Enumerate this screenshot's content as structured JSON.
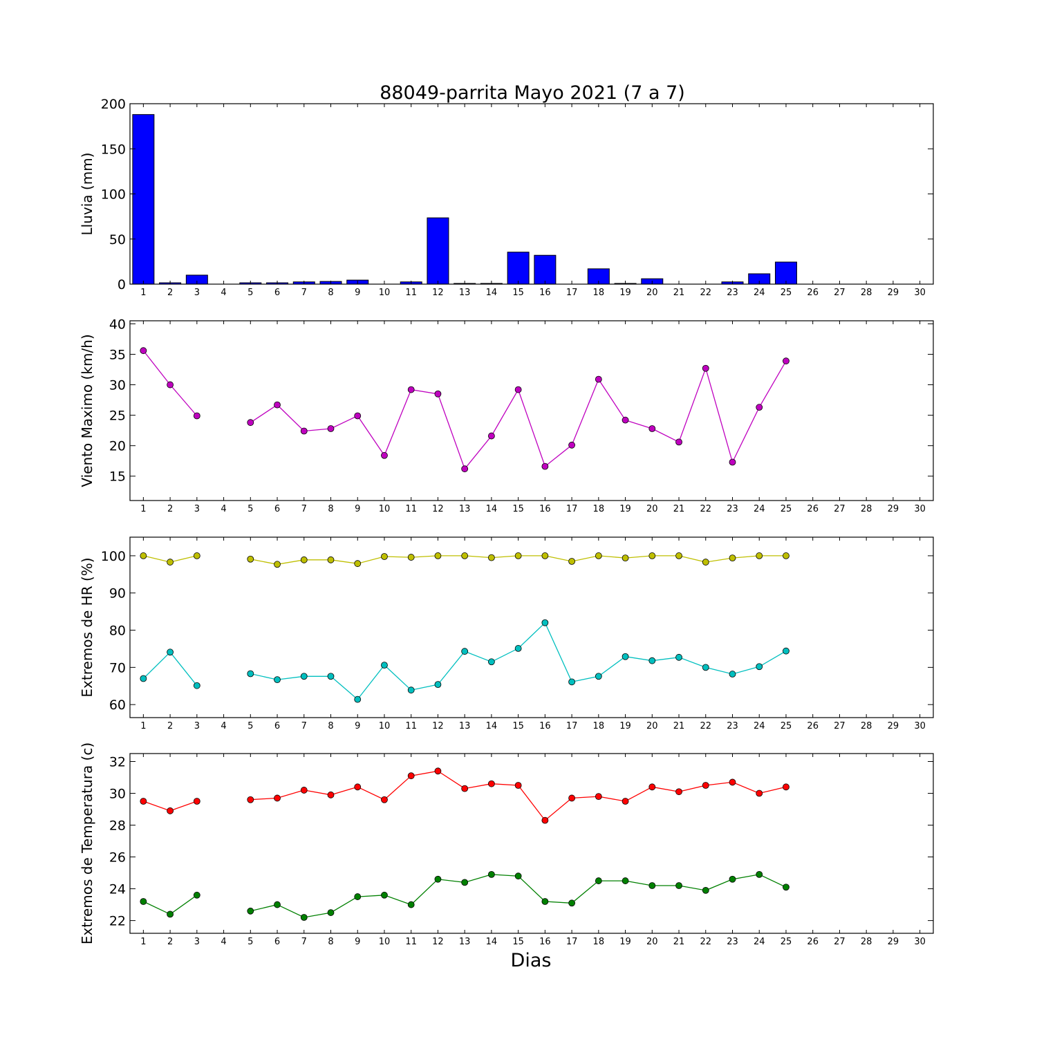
{
  "figure": {
    "title": "88049-parrita Mayo 2021  (7 a 7)",
    "xlabel": "Dias"
  },
  "chart_data": [
    {
      "type": "bar",
      "ylabel": "Lluvia (mm)",
      "ylim": [
        0,
        200
      ],
      "yticks": [
        0,
        50,
        100,
        150,
        200
      ],
      "xticks": [
        1,
        2,
        3,
        4,
        5,
        6,
        7,
        8,
        9,
        10,
        11,
        12,
        13,
        14,
        15,
        16,
        17,
        18,
        19,
        20,
        21,
        22,
        23,
        24,
        25,
        26,
        27,
        28,
        29,
        30
      ],
      "x": [
        1,
        2,
        3,
        4,
        5,
        6,
        7,
        8,
        9,
        10,
        11,
        12,
        13,
        14,
        15,
        16,
        17,
        18,
        19,
        20,
        21,
        22,
        23,
        24,
        25
      ],
      "series": [
        {
          "color": "#0000ff",
          "values": [
            188,
            1.5,
            10,
            null,
            1.5,
            1.5,
            2.5,
            3,
            4.5,
            null,
            2.5,
            73.5,
            0.8,
            0.8,
            35.5,
            32,
            null,
            17,
            0.8,
            6,
            null,
            null,
            2.5,
            11.5,
            24.5
          ]
        }
      ]
    },
    {
      "type": "line",
      "ylabel": "Viento Maximo (km/h)",
      "ylim": [
        11,
        40.5
      ],
      "yticks": [
        15,
        20,
        25,
        30,
        35,
        40
      ],
      "xticks": [
        1,
        2,
        3,
        4,
        5,
        6,
        7,
        8,
        9,
        10,
        11,
        12,
        13,
        14,
        15,
        16,
        17,
        18,
        19,
        20,
        21,
        22,
        23,
        24,
        25,
        26,
        27,
        28,
        29,
        30
      ],
      "x": [
        1,
        2,
        3,
        4,
        5,
        6,
        7,
        8,
        9,
        10,
        11,
        12,
        13,
        14,
        15,
        16,
        17,
        18,
        19,
        20,
        21,
        22,
        23,
        24,
        25
      ],
      "series": [
        {
          "color": "#bf00bf",
          "values": [
            35.6,
            30,
            24.9,
            null,
            23.8,
            26.7,
            22.4,
            22.8,
            24.9,
            18.4,
            29.2,
            28.5,
            16.2,
            21.6,
            29.2,
            16.6,
            20.1,
            30.9,
            24.2,
            22.8,
            20.6,
            32.7,
            17.3,
            26.3,
            33.9
          ]
        }
      ]
    },
    {
      "type": "line",
      "ylabel": "Extremos de HR (%)",
      "ylim": [
        56.5,
        105
      ],
      "yticks": [
        60,
        70,
        80,
        90,
        100
      ],
      "xticks": [
        1,
        2,
        3,
        4,
        5,
        6,
        7,
        8,
        9,
        10,
        11,
        12,
        13,
        14,
        15,
        16,
        17,
        18,
        19,
        20,
        21,
        22,
        23,
        24,
        25,
        26,
        27,
        28,
        29,
        30
      ],
      "x": [
        1,
        2,
        3,
        4,
        5,
        6,
        7,
        8,
        9,
        10,
        11,
        12,
        13,
        14,
        15,
        16,
        17,
        18,
        19,
        20,
        21,
        22,
        23,
        24,
        25
      ],
      "series": [
        {
          "color": "#bfbf00",
          "values": [
            100,
            98.3,
            100,
            null,
            99.1,
            97.7,
            98.9,
            98.9,
            97.9,
            99.8,
            99.6,
            100,
            100,
            99.5,
            100,
            100,
            98.5,
            100,
            99.4,
            100,
            100,
            98.3,
            99.4,
            100,
            100
          ]
        },
        {
          "color": "#00bfbf",
          "values": [
            67,
            74.1,
            65.1,
            null,
            68.3,
            66.7,
            67.6,
            67.6,
            61.4,
            70.6,
            63.9,
            65.4,
            74.3,
            71.5,
            75.1,
            82,
            66.1,
            67.6,
            72.9,
            71.8,
            72.7,
            70,
            68.2,
            70.2,
            74.4
          ]
        }
      ]
    },
    {
      "type": "line",
      "ylabel": "Extremos de Temperatura (c)",
      "ylim": [
        21.2,
        32.5
      ],
      "yticks": [
        22,
        24,
        26,
        28,
        30,
        32
      ],
      "xticks": [
        1,
        2,
        3,
        4,
        5,
        6,
        7,
        8,
        9,
        10,
        11,
        12,
        13,
        14,
        15,
        16,
        17,
        18,
        19,
        20,
        21,
        22,
        23,
        24,
        25,
        26,
        27,
        28,
        29,
        30
      ],
      "x": [
        1,
        2,
        3,
        4,
        5,
        6,
        7,
        8,
        9,
        10,
        11,
        12,
        13,
        14,
        15,
        16,
        17,
        18,
        19,
        20,
        21,
        22,
        23,
        24,
        25
      ],
      "series": [
        {
          "color": "#ff0000",
          "values": [
            29.5,
            28.9,
            29.5,
            null,
            29.6,
            29.7,
            30.2,
            29.9,
            30.4,
            29.6,
            31.1,
            31.4,
            30.3,
            30.6,
            30.5,
            28.3,
            29.7,
            29.8,
            29.5,
            30.4,
            30.1,
            30.5,
            30.7,
            30,
            30.4
          ]
        },
        {
          "color": "#008000",
          "values": [
            23.2,
            22.4,
            23.6,
            null,
            22.6,
            23,
            22.2,
            22.5,
            23.5,
            23.6,
            23,
            24.6,
            24.4,
            24.9,
            24.8,
            23.2,
            23.1,
            24.5,
            24.5,
            24.2,
            24.2,
            23.9,
            24.6,
            24.9,
            24.1
          ]
        }
      ]
    }
  ]
}
